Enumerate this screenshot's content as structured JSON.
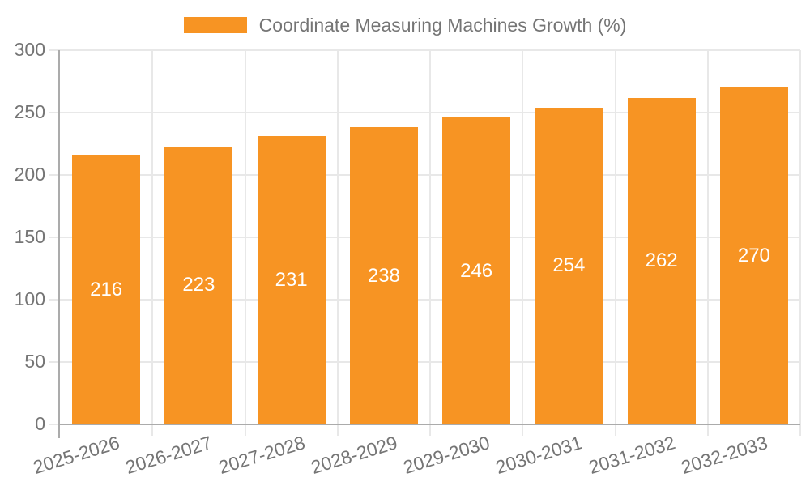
{
  "legend": {
    "label": "Coordinate Measuring Machines Growth (%)"
  },
  "chart_data": {
    "type": "bar",
    "series_name": "Coordinate Measuring Machines Growth (%)",
    "categories": [
      "2025-2026",
      "2026-2027",
      "2027-2028",
      "2028-2029",
      "2029-2030",
      "2030-2031",
      "2031-2032",
      "2032-2033"
    ],
    "values": [
      216,
      223,
      231,
      238,
      246,
      254,
      262,
      270
    ],
    "value_labels": [
      "216",
      "223",
      "231",
      "238",
      "246",
      "254",
      "262",
      "270"
    ],
    "ytick_labels": [
      "0",
      "50",
      "100",
      "150",
      "200",
      "250",
      "300"
    ],
    "yticks": [
      0,
      50,
      100,
      150,
      200,
      250,
      300
    ],
    "ylim": [
      0,
      300
    ],
    "xlabel": "",
    "ylabel": "",
    "grid": true,
    "legend_position": "top"
  },
  "colors": {
    "bar": "#F79423",
    "bar_value_text": "#FFFFFF",
    "grid": "#E8E8E8",
    "axis": "#ABABAB",
    "tick_text": "#757575"
  }
}
